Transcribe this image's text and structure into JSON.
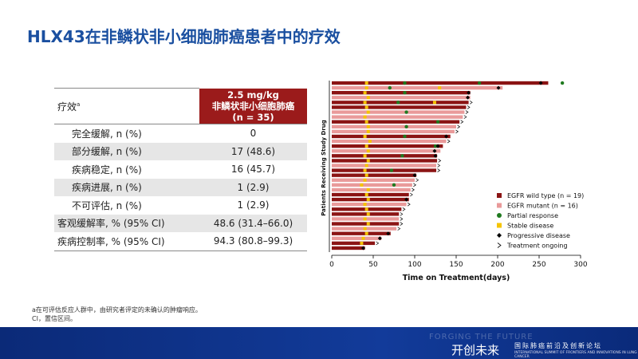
{
  "title": "HLX43在非鳞状非小细胞肺癌患者中的疗效",
  "table": {
    "header": {
      "label": "疗效",
      "label_note": "a",
      "group_lines": [
        "2.5 mg/kg",
        "非鳞状非小细胞肺癌",
        "(n = 35)"
      ]
    },
    "rows": [
      [
        "完全缓解, n (%)",
        "0"
      ],
      [
        "部分缓解, n (%)",
        "17 (48.6)"
      ],
      [
        "疾病稳定, n (%)",
        "16 (45.7)"
      ],
      [
        "疾病进展, n (%)",
        "1 (2.9)"
      ],
      [
        "不可评估, n (%)",
        "1 (2.9)"
      ],
      [
        "客观缓解率, % (95% CI)",
        "48.6 (31.4–66.0)"
      ],
      [
        "疾病控制率, % (95% CI)",
        "94.3 (80.8–99.3)"
      ]
    ]
  },
  "chart_data": {
    "type": "swimmer",
    "x_label": "Time on Treatment(days)",
    "y_label": "Patients Receiving Study Drug",
    "xlim": [
      0,
      300
    ],
    "xticks": [
      0,
      50,
      100,
      150,
      200,
      250,
      300
    ],
    "groups": [
      {
        "name": "EGFR wild type (n = 19)",
        "color": "#8b1414"
      },
      {
        "name": "EGFR mutant (n = 16)",
        "color": "#e99a9a"
      }
    ],
    "markers": [
      {
        "name": "Partial response",
        "color": "#1f7a1f"
      },
      {
        "name": "Stable disease",
        "color": "#f5c400"
      },
      {
        "name": "Progressive disease",
        "color": "#000000"
      },
      {
        "name": "Treatment ongoing",
        "color": "#000000"
      }
    ],
    "patients": [
      {
        "group": 0,
        "duration": 261,
        "sd": [
          42
        ],
        "pr": [
          88,
          178,
          278
        ],
        "pd": 252
      },
      {
        "group": 1,
        "duration": 206,
        "sd": [
          42,
          130
        ],
        "pr": [
          70
        ],
        "pd": 201
      },
      {
        "group": 0,
        "duration": 167,
        "sd": [
          40
        ],
        "pr": [
          88
        ],
        "pd": 165
      },
      {
        "group": 1,
        "duration": 167,
        "sd": [
          44
        ],
        "pr": [],
        "pd": 164
      },
      {
        "group": 0,
        "duration": 165,
        "sd": [
          40,
          124
        ],
        "pr": [
          80
        ],
        "ongoing": true
      },
      {
        "group": 0,
        "duration": 162,
        "sd": [
          42
        ],
        "pr": [],
        "ongoing": true
      },
      {
        "group": 1,
        "duration": 160,
        "sd": [
          44
        ],
        "pr": [
          90
        ],
        "ongoing": true
      },
      {
        "group": 1,
        "duration": 158,
        "sd": [
          40
        ],
        "pr": [],
        "ongoing": true
      },
      {
        "group": 0,
        "duration": 154,
        "sd": [
          42
        ],
        "pr": [
          128
        ],
        "ongoing": true
      },
      {
        "group": 1,
        "duration": 150,
        "sd": [
          44
        ],
        "pr": [
          90
        ],
        "ongoing": true
      },
      {
        "group": 1,
        "duration": 148,
        "sd": [
          44
        ],
        "pr": [],
        "ongoing": true
      },
      {
        "group": 0,
        "duration": 143,
        "sd": [
          40
        ],
        "pr": [
          88
        ],
        "pd": 138
      },
      {
        "group": 1,
        "duration": 138,
        "sd": [
          46
        ],
        "pr": [],
        "ongoing": true
      },
      {
        "group": 0,
        "duration": 134,
        "sd": [
          42
        ],
        "pr": [
          125
        ],
        "pd": 128
      },
      {
        "group": 1,
        "duration": 131,
        "sd": [
          44
        ],
        "pr": [],
        "pd": 124
      },
      {
        "group": 0,
        "duration": 127,
        "sd": [
          40
        ],
        "pr": [
          85
        ],
        "pd": 125
      },
      {
        "group": 0,
        "duration": 127,
        "sd": [
          44
        ],
        "pr": [],
        "ongoing": true
      },
      {
        "group": 1,
        "duration": 126,
        "sd": [
          42
        ],
        "pr": [],
        "ongoing": true
      },
      {
        "group": 0,
        "duration": 126,
        "sd": [
          40
        ],
        "pr": [
          72
        ],
        "ongoing": true
      },
      {
        "group": 0,
        "duration": 102,
        "sd": [
          42
        ],
        "pr": [],
        "pd": 100
      },
      {
        "group": 1,
        "duration": 100,
        "sd": [
          40
        ],
        "pr": [],
        "ongoing": true
      },
      {
        "group": 1,
        "duration": 97,
        "sd": [
          36
        ],
        "pr": [
          75
        ],
        "ongoing": true
      },
      {
        "group": 1,
        "duration": 95,
        "sd": [
          44
        ],
        "pr": [],
        "ongoing": true
      },
      {
        "group": 0,
        "duration": 93,
        "sd": [
          42
        ],
        "pr": [],
        "ongoing": true
      },
      {
        "group": 0,
        "duration": 93,
        "sd": [
          44
        ],
        "pr": [],
        "pd": 90
      },
      {
        "group": 1,
        "duration": 90,
        "sd": [
          40
        ],
        "pr": [],
        "ongoing": true
      },
      {
        "group": 0,
        "duration": 84,
        "sd": [
          42
        ],
        "pr": [],
        "ongoing": true
      },
      {
        "group": 0,
        "duration": 81,
        "sd": [
          44
        ],
        "pr": [],
        "ongoing": true
      },
      {
        "group": 1,
        "duration": 81,
        "sd": [
          40
        ],
        "pr": [],
        "ongoing": true
      },
      {
        "group": 0,
        "duration": 81,
        "sd": [
          44
        ],
        "pr": [],
        "ongoing": true
      },
      {
        "group": 1,
        "duration": 78,
        "sd": [
          40
        ],
        "pr": [],
        "ongoing": true
      },
      {
        "group": 0,
        "duration": 71,
        "sd": [
          42
        ],
        "pr": [],
        "pd": 68
      },
      {
        "group": 1,
        "duration": 60,
        "sd": [
          38
        ],
        "pr": [],
        "pd": 58
      },
      {
        "group": 0,
        "duration": 52,
        "sd": [
          36
        ],
        "pr": [],
        "ongoing": true
      },
      {
        "group": 0,
        "duration": 40,
        "sd": [],
        "pr": [],
        "pd": 38
      }
    ]
  },
  "footnotes": [
    "a在可评估反应人群中，由研究者评定的未确认的肿瘤响应。",
    "CI，置信区间。"
  ],
  "footer": {
    "motto": "FORGING THE FUTURE",
    "brand": "开创未来",
    "forum": "国际肺癌前沿及创新论坛",
    "forum_en": "INTERNATIONAL SUMMIT OF FRONTIERS AND INNOVATIONS IN LUNG CANCER"
  }
}
